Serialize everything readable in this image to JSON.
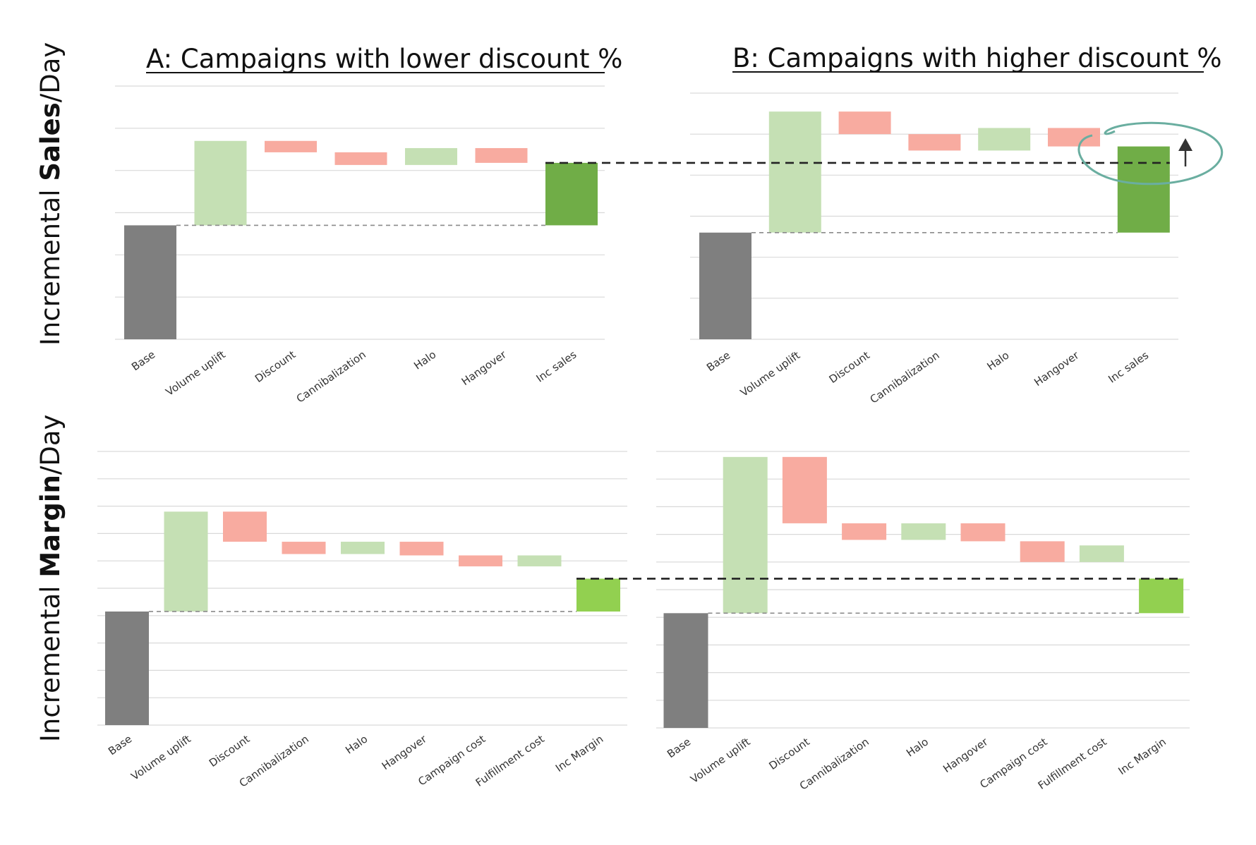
{
  "titles": {
    "a": "A: Campaigns with lower discount %",
    "b": "B: Campaigns with higher discount %"
  },
  "row_labels": {
    "sales_prefix": "Incremental ",
    "sales_bold": "Sales",
    "sales_suffix": "/Day",
    "margin_prefix": "Incremental ",
    "margin_bold": "Margin",
    "margin_suffix": "/Day"
  },
  "colors": {
    "base": "#7f7f7f",
    "increase": "#c5e0b4",
    "decrease": "#f8aba0",
    "total_sales": "#70ad47",
    "total_margin": "#92d050",
    "grid": "#d9d9d9",
    "highlight": "#6aaea0",
    "arrow": "#333333"
  },
  "chart_data": [
    {
      "id": "sales-a",
      "type": "waterfall",
      "title": "A: Campaigns with lower discount %",
      "ylabel": "Incremental Sales/Day",
      "categories": [
        "Base",
        "Volume uplift",
        "Discount",
        "Cannibalization",
        "Halo",
        "Hangover",
        "Inc sales"
      ],
      "values": [
        2.7,
        2.0,
        -0.27,
        -0.3,
        0.4,
        -0.35,
        1.48
      ],
      "kinds": [
        "base",
        "delta",
        "delta",
        "delta",
        "delta",
        "delta",
        "total"
      ],
      "ylim": [
        0,
        6
      ],
      "grid": true
    },
    {
      "id": "sales-b",
      "type": "waterfall",
      "title": "B: Campaigns with higher discount %",
      "ylabel": "Incremental Sales/Day",
      "categories": [
        "Base",
        "Volume uplift",
        "Discount",
        "Cannibalization",
        "Halo",
        "Hangover",
        "Inc sales"
      ],
      "values": [
        2.6,
        2.95,
        -0.55,
        -0.4,
        0.55,
        -0.45,
        2.1
      ],
      "kinds": [
        "base",
        "delta",
        "delta",
        "delta",
        "delta",
        "delta",
        "total"
      ],
      "ylim": [
        0,
        6
      ],
      "grid": true
    },
    {
      "id": "margin-a",
      "type": "waterfall",
      "ylabel": "Incremental Margin/Day",
      "categories": [
        "Base",
        "Volume uplift",
        "Discount",
        "Cannibalization",
        "Halo",
        "Hangover",
        "Campaign cost",
        "Fulfillment cost",
        "Inc Margin"
      ],
      "values": [
        4.15,
        3.65,
        -1.1,
        -0.45,
        0.45,
        -0.5,
        -0.4,
        0.4,
        1.2
      ],
      "kinds": [
        "base",
        "delta",
        "delta",
        "delta",
        "delta",
        "delta",
        "delta",
        "delta",
        "total"
      ],
      "ylim": [
        0,
        10
      ],
      "grid": true
    },
    {
      "id": "margin-b",
      "type": "waterfall",
      "ylabel": "Incremental Margin/Day",
      "categories": [
        "Base",
        "Volume uplift",
        "Discount",
        "Cannibalization",
        "Halo",
        "Hangover",
        "Campaign cost",
        "Fulfillment cost",
        "Inc Margin"
      ],
      "values": [
        4.15,
        5.65,
        -2.4,
        -0.6,
        0.6,
        -0.65,
        -0.75,
        0.6,
        1.25
      ],
      "kinds": [
        "base",
        "delta",
        "delta",
        "delta",
        "delta",
        "delta",
        "delta",
        "delta",
        "total"
      ],
      "ylim": [
        0,
        10
      ],
      "grid": true
    }
  ]
}
